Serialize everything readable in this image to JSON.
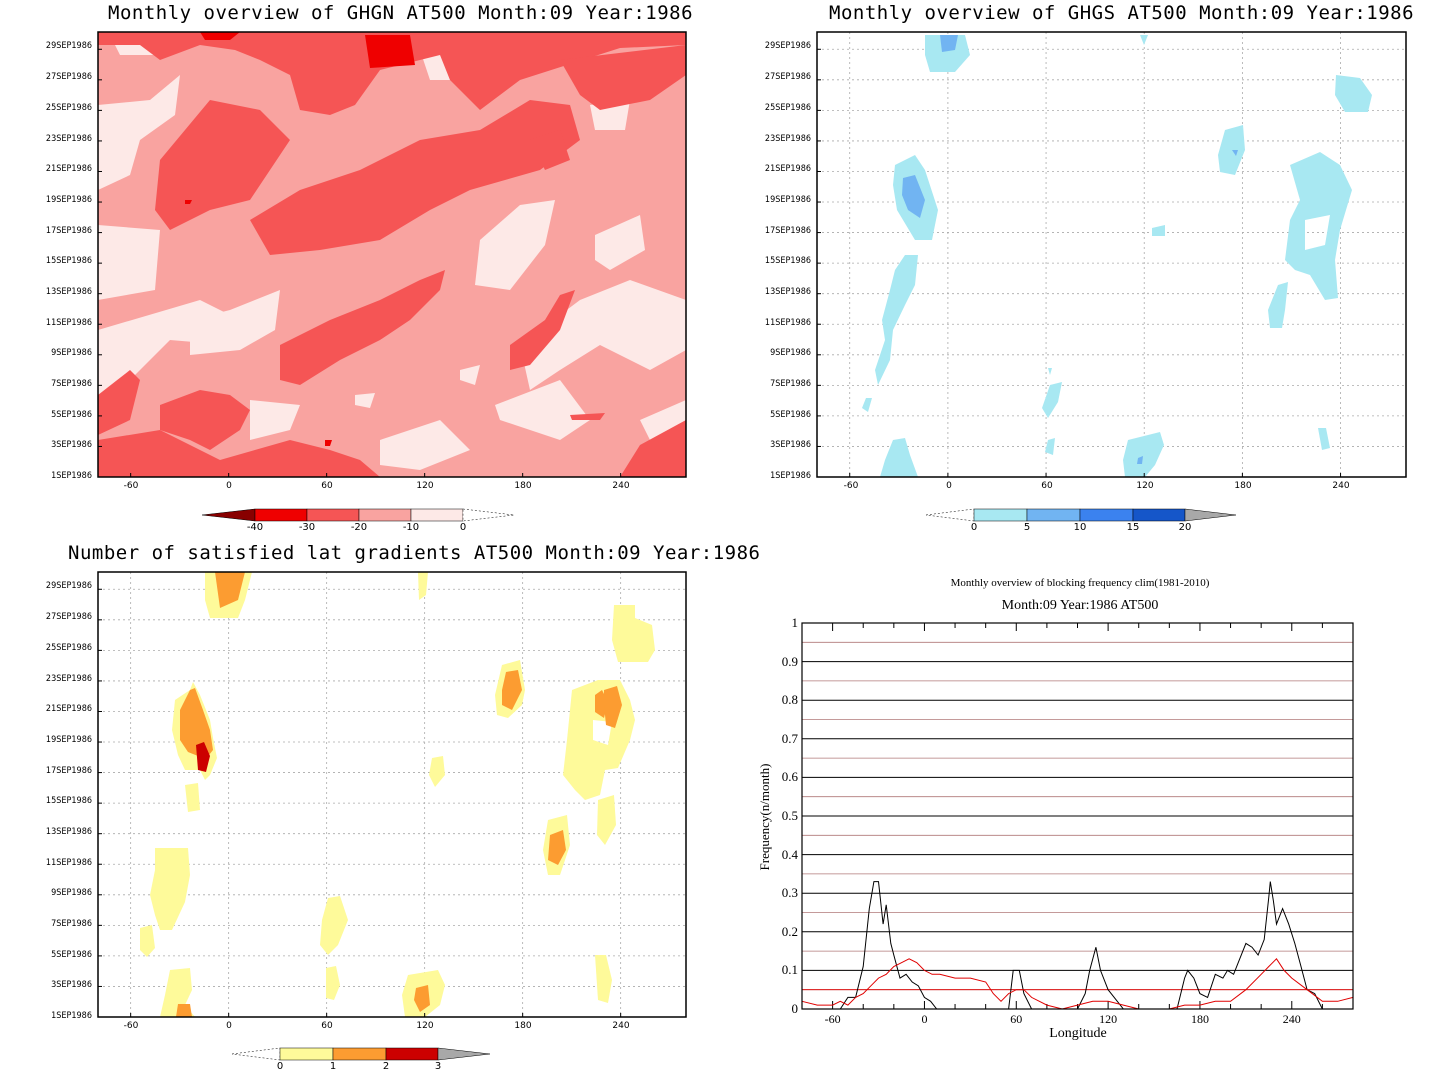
{
  "colors": {
    "red_1": "#fde9e7",
    "red_2": "#f9a3a0",
    "red_3": "#f55555",
    "red_4": "#ef0000",
    "red_5": "#880000",
    "blue_1": "#a8e8f2",
    "blue_2": "#71b4f2",
    "blue_3": "#3b82ef",
    "blue_4": "#1556c9",
    "grey": "#a8a8a8",
    "yellow": "#fefa9a",
    "orange": "#fc9c31",
    "darkred": "#cc0000",
    "line_black": "#000000",
    "line_red": "#e00000",
    "grid_brown": "#b07878"
  },
  "date_labels": [
    "29SEP1986",
    "27SEP1986",
    "25SEP1986",
    "23SEP1986",
    "21SEP1986",
    "19SEP1986",
    "17SEP1986",
    "15SEP1986",
    "13SEP1986",
    "11SEP1986",
    "9SEP1986",
    "7SEP1986",
    "5SEP1986",
    "3SEP1986",
    "1SEP1986"
  ],
  "lon_labels": [
    "-60",
    "0",
    "60",
    "120",
    "180",
    "240"
  ],
  "panels": {
    "ghgn": {
      "title": "Monthly overview of GHGN AT500 Month:09 Year:1986",
      "colorbar": [
        "-40",
        "-30",
        "-20",
        "-10",
        "0"
      ]
    },
    "ghgs": {
      "title": "Monthly overview of GHGS AT500 Month:09 Year:1986",
      "colorbar": [
        "0",
        "5",
        "10",
        "15",
        "20"
      ]
    },
    "lat": {
      "title": "Number of satisfied lat gradients AT500 Month:09 Year:1986",
      "colorbar": [
        "0",
        "1",
        "2",
        "3"
      ]
    },
    "freq": {
      "title": "Monthly overview of blocking frequency clim(1981-2010)",
      "subtitle": "Month:09 Year:1986  AT500",
      "xlabel": "Longitude",
      "ylabel": "Frequency(n/month)",
      "x_tick_labels": [
        "-60",
        "0",
        "60",
        "120",
        "180",
        "240"
      ],
      "y_tick_labels": [
        "0",
        "0.1",
        "0.2",
        "0.3",
        "0.4",
        "0.5",
        "0.6",
        "0.7",
        "0.8",
        "0.9",
        "1"
      ]
    }
  },
  "chart_data": [
    {
      "type": "heatmap",
      "title": "Monthly overview of GHGN AT500 Month:09 Year:1986",
      "x_range": [
        -80,
        280
      ],
      "y_range": [
        "1SEP1986",
        "30SEP1986"
      ],
      "levels": [
        -40,
        -30,
        -20,
        -10,
        0
      ]
    },
    {
      "type": "heatmap",
      "title": "Monthly overview of GHGS AT500 Month:09 Year:1986",
      "x_range": [
        -80,
        280
      ],
      "y_range": [
        "1SEP1986",
        "30SEP1986"
      ],
      "levels": [
        0,
        5,
        10,
        15,
        20
      ]
    },
    {
      "type": "heatmap",
      "title": "Number of satisfied lat gradients AT500 Month:09 Year:1986",
      "x_range": [
        -80,
        280
      ],
      "y_range": [
        "1SEP1986",
        "30SEP1986"
      ],
      "levels": [
        0,
        1,
        2,
        3
      ]
    },
    {
      "type": "line",
      "title": "Monthly overview of blocking frequency clim(1981-2010)",
      "subtitle": "Month:09 Year:1986  AT500",
      "xlabel": "Longitude",
      "ylabel": "Frequency(n/month)",
      "xlim": [
        -80,
        280
      ],
      "ylim": [
        0,
        1
      ],
      "series": [
        {
          "color": "black",
          "x": [
            -80,
            -55,
            -50,
            -45,
            -40,
            -36,
            -33,
            -30,
            -27,
            -25,
            -22,
            -20,
            -16,
            -12,
            -8,
            -4,
            0,
            4,
            8,
            12,
            16,
            20,
            30,
            40,
            50,
            55,
            58,
            62,
            65,
            70,
            80,
            90,
            100,
            105,
            108,
            112,
            115,
            120,
            130,
            140,
            150,
            160,
            165,
            170,
            172,
            176,
            180,
            185,
            190,
            195,
            198,
            202,
            205,
            210,
            214,
            218,
            222,
            225,
            226,
            228,
            230,
            234,
            238,
            242,
            246,
            250,
            255,
            260,
            265,
            270,
            280
          ],
          "y": [
            0,
            0,
            0.03,
            0.03,
            0.11,
            0.26,
            0.33,
            0.33,
            0.22,
            0.27,
            0.17,
            0.14,
            0.08,
            0.09,
            0.07,
            0.06,
            0.03,
            0.02,
            0,
            0,
            0,
            0,
            0,
            0,
            0,
            0,
            0.1,
            0.1,
            0.04,
            0,
            0,
            0,
            0,
            0.04,
            0.1,
            0.16,
            0.1,
            0.05,
            0,
            0,
            0,
            0,
            0,
            0.08,
            0.1,
            0.08,
            0.04,
            0.03,
            0.09,
            0.08,
            0.1,
            0.09,
            0.12,
            0.17,
            0.16,
            0.14,
            0.18,
            0.29,
            0.33,
            0.28,
            0.22,
            0.26,
            0.22,
            0.17,
            0.11,
            0.05,
            0.04,
            0,
            0,
            0,
            0
          ]
        },
        {
          "color": "red",
          "x": [
            -80,
            -70,
            -60,
            -55,
            -50,
            -45,
            -40,
            -35,
            -30,
            -25,
            -20,
            -15,
            -10,
            -5,
            0,
            5,
            10,
            20,
            30,
            40,
            45,
            50,
            55,
            60,
            65,
            70,
            80,
            90,
            100,
            110,
            120,
            130,
            140,
            150,
            160,
            170,
            180,
            190,
            200,
            210,
            220,
            225,
            230,
            235,
            240,
            250,
            260,
            270,
            280
          ],
          "y": [
            0.02,
            0.01,
            0.01,
            0.02,
            0.01,
            0.03,
            0.04,
            0.06,
            0.08,
            0.09,
            0.11,
            0.12,
            0.13,
            0.12,
            0.1,
            0.09,
            0.09,
            0.08,
            0.08,
            0.07,
            0.04,
            0.02,
            0.04,
            0.05,
            0.05,
            0.03,
            0.01,
            0,
            0.01,
            0.02,
            0.02,
            0.01,
            0,
            0,
            0,
            0.01,
            0.01,
            0.02,
            0.02,
            0.05,
            0.09,
            0.11,
            0.13,
            0.1,
            0.08,
            0.05,
            0.02,
            0.02,
            0.03
          ]
        }
      ]
    }
  ]
}
